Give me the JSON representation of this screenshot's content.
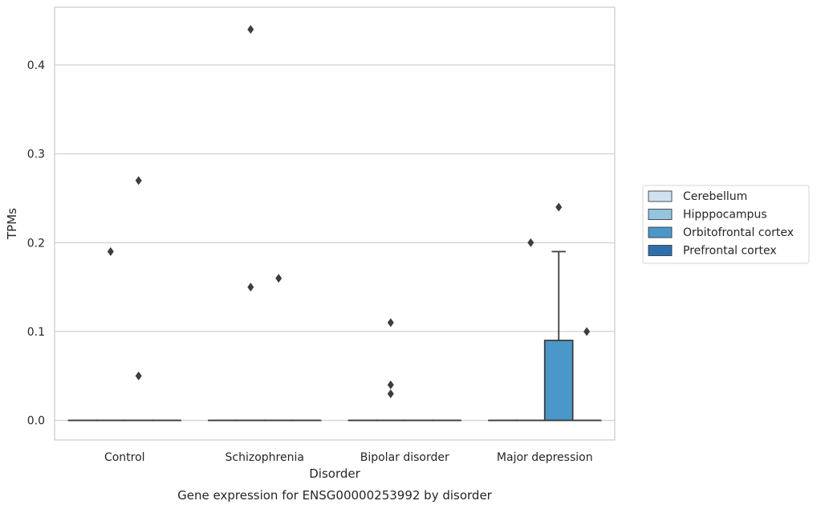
{
  "chart_data": {
    "type": "box",
    "title": "Gene expression for ENSG00000253992 by disorder",
    "xlabel": "Disorder",
    "ylabel": "TPMs",
    "ylim": [
      -0.022,
      0.465
    ],
    "yticks": [
      0.0,
      0.1,
      0.2,
      0.3,
      0.4
    ],
    "ytick_labels": [
      "0.0",
      "0.1",
      "0.2",
      "0.3",
      "0.4"
    ],
    "grid": "horizontal",
    "legend_position": "right",
    "categories": [
      "Control",
      "Schizophrenia",
      "Bipolar disorder",
      "Major depression"
    ],
    "series": [
      {
        "name": "Cerebellum",
        "color": "#d0e1f2",
        "boxes": [
          {
            "category": "Control",
            "q1": 0,
            "median": 0,
            "q3": 0,
            "whisker_low": 0,
            "whisker_high": 0,
            "outliers": []
          },
          {
            "category": "Schizophrenia",
            "q1": 0,
            "median": 0,
            "q3": 0,
            "whisker_low": 0,
            "whisker_high": 0,
            "outliers": []
          },
          {
            "category": "Bipolar disorder",
            "q1": 0,
            "median": 0,
            "q3": 0,
            "whisker_low": 0,
            "whisker_high": 0,
            "outliers": []
          },
          {
            "category": "Major depression",
            "q1": 0,
            "median": 0,
            "q3": 0,
            "whisker_low": 0,
            "whisker_high": 0,
            "outliers": []
          }
        ]
      },
      {
        "name": "Hipppocampus",
        "color": "#94c4df",
        "boxes": [
          {
            "category": "Control",
            "q1": 0,
            "median": 0,
            "q3": 0,
            "whisker_low": 0,
            "whisker_high": 0,
            "outliers": [
              0.19
            ]
          },
          {
            "category": "Schizophrenia",
            "q1": 0,
            "median": 0,
            "q3": 0,
            "whisker_low": 0,
            "whisker_high": 0,
            "outliers": [
              0.15,
              0.44
            ]
          },
          {
            "category": "Bipolar disorder",
            "q1": 0,
            "median": 0,
            "q3": 0,
            "whisker_low": 0,
            "whisker_high": 0,
            "outliers": [
              0.03,
              0.04,
              0.11
            ]
          },
          {
            "category": "Major depression",
            "q1": 0,
            "median": 0,
            "q3": 0,
            "whisker_low": 0,
            "whisker_high": 0,
            "outliers": [
              0.2
            ]
          }
        ]
      },
      {
        "name": "Orbitofrontal cortex",
        "color": "#4a98c9",
        "boxes": [
          {
            "category": "Control",
            "q1": 0,
            "median": 0,
            "q3": 0,
            "whisker_low": 0,
            "whisker_high": 0,
            "outliers": [
              0.05,
              0.27
            ]
          },
          {
            "category": "Schizophrenia",
            "q1": 0,
            "median": 0,
            "q3": 0,
            "whisker_low": 0,
            "whisker_high": 0,
            "outliers": [
              0.16
            ]
          },
          {
            "category": "Bipolar disorder",
            "q1": 0,
            "median": 0,
            "q3": 0,
            "whisker_low": 0,
            "whisker_high": 0,
            "outliers": []
          },
          {
            "category": "Major depression",
            "q1": 0,
            "median": 0,
            "q3": 0.09,
            "whisker_low": 0,
            "whisker_high": 0.19,
            "outliers": [
              0.24
            ]
          }
        ]
      },
      {
        "name": "Prefrontal cortex",
        "color": "#2d6fad",
        "boxes": [
          {
            "category": "Control",
            "q1": 0,
            "median": 0,
            "q3": 0,
            "whisker_low": 0,
            "whisker_high": 0,
            "outliers": []
          },
          {
            "category": "Schizophrenia",
            "q1": 0,
            "median": 0,
            "q3": 0,
            "whisker_low": 0,
            "whisker_high": 0,
            "outliers": []
          },
          {
            "category": "Bipolar disorder",
            "q1": 0,
            "median": 0,
            "q3": 0,
            "whisker_low": 0,
            "whisker_high": 0,
            "outliers": []
          },
          {
            "category": "Major depression",
            "q1": 0,
            "median": 0,
            "q3": 0,
            "whisker_low": 0,
            "whisker_high": 0,
            "outliers": [
              0.1
            ]
          }
        ]
      }
    ]
  }
}
